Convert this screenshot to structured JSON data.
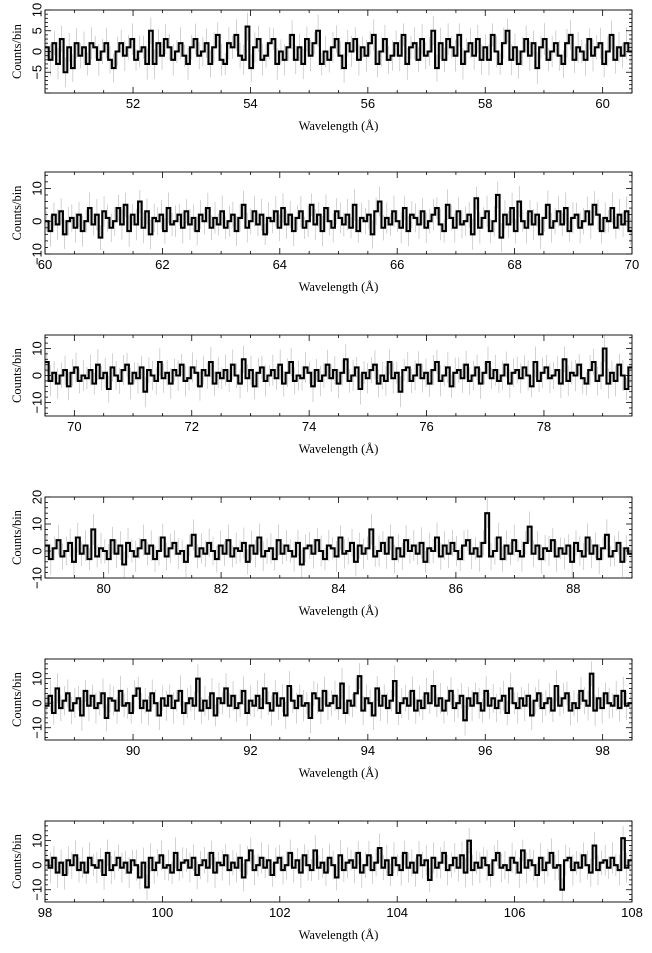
{
  "chart_data": [
    {
      "type": "line",
      "style": "step-histogram-with-error-bars",
      "xlabel": "Wavelength (Å)",
      "ylabel": "Counts/bin",
      "xlim": [
        50.5,
        60.5
      ],
      "ylim": [
        -10,
        10
      ],
      "xticks": [
        52,
        54,
        56,
        58,
        60
      ],
      "yticks": [
        -5,
        0,
        5,
        10
      ],
      "ytick_labels": [
        "−5",
        "0",
        "5",
        "10"
      ],
      "series": [
        {
          "values": [
            1,
            -2,
            2,
            -3,
            3,
            -5,
            1,
            -4,
            2,
            -1,
            1,
            -3,
            2,
            1,
            -2,
            0,
            2,
            -2,
            -4,
            0,
            2,
            -1,
            1,
            3,
            -2,
            0,
            1,
            -3,
            5,
            -3,
            2,
            -1,
            3,
            1,
            -2,
            0,
            2,
            -1,
            -3,
            1,
            3,
            -1,
            0,
            2,
            -3,
            1,
            4,
            -2,
            -3,
            2,
            1,
            4,
            -1,
            -2,
            6,
            -4,
            1,
            3,
            -2,
            -1,
            2,
            3,
            -3,
            0,
            -2,
            1,
            4,
            -2,
            1,
            -3,
            3,
            -1,
            2,
            5,
            -3,
            0,
            -2,
            1,
            3,
            -1,
            -4,
            2,
            0,
            3,
            -2,
            1,
            -1,
            2,
            4,
            -3,
            0,
            3,
            -2,
            -1,
            2,
            -1,
            4,
            -3,
            1,
            2,
            -2,
            3,
            -1,
            0,
            5,
            -4,
            2,
            -2,
            3,
            1,
            -1,
            4,
            -3,
            0,
            2,
            -1,
            3,
            -2,
            1,
            -2,
            4,
            0,
            -3,
            2,
            5,
            -2,
            1,
            -3,
            0,
            3,
            -1,
            2,
            -4,
            1,
            3,
            -2,
            0,
            2,
            -1,
            -3,
            2,
            4,
            -2,
            1,
            0,
            -2,
            3,
            -1,
            1,
            2,
            -3,
            0,
            4,
            -2,
            1,
            -1,
            2,
            0
          ]
        }
      ]
    },
    {
      "type": "line",
      "style": "step-histogram-with-error-bars",
      "xlabel": "Wavelength (Å)",
      "ylabel": "Counts/bin",
      "xlim": [
        60,
        70
      ],
      "ylim": [
        -10,
        15
      ],
      "xticks": [
        60,
        62,
        64,
        66,
        68,
        70
      ],
      "yticks": [
        -10,
        0,
        10
      ],
      "ytick_labels": [
        "−10",
        "0",
        "10"
      ],
      "series": [
        {
          "values": [
            0,
            -3,
            2,
            -1,
            3,
            -4,
            0,
            1,
            -2,
            2,
            -3,
            0,
            4,
            -1,
            2,
            -5,
            3,
            1,
            -2,
            0,
            4,
            -1,
            5,
            -3,
            2,
            -1,
            6,
            -2,
            3,
            -4,
            1,
            0,
            2,
            -3,
            4,
            -1,
            0,
            2,
            -2,
            3,
            -1,
            1,
            -3,
            2,
            0,
            4,
            -2,
            1,
            -1,
            3,
            -2,
            0,
            2,
            -3,
            1,
            5,
            -2,
            0,
            3,
            -1,
            2,
            -4,
            1,
            0,
            3,
            -2,
            4,
            -1,
            2,
            -3,
            1,
            3,
            -2,
            0,
            5,
            -1,
            2,
            -3,
            4,
            0,
            -2,
            3,
            1,
            -1,
            2,
            -2,
            5,
            -3,
            1,
            0,
            2,
            -4,
            3,
            6,
            -2,
            1,
            -1,
            3,
            0,
            -2,
            4,
            -3,
            2,
            1,
            -1,
            3,
            -2,
            0,
            2,
            4,
            -1,
            -3,
            5,
            1,
            -2,
            3,
            -1,
            0,
            2,
            -4,
            7,
            -2,
            1,
            3,
            -3,
            0,
            8,
            -5,
            2,
            -1,
            4,
            -3,
            6,
            0,
            -2,
            3,
            -1,
            2,
            -4,
            1,
            5,
            -2,
            0,
            3,
            -1,
            4,
            -3,
            1,
            2,
            -2,
            0,
            3,
            -1,
            5,
            2,
            -3,
            1,
            0,
            4,
            -2,
            2,
            -1,
            3,
            -3
          ]
        }
      ]
    },
    {
      "type": "line",
      "style": "step-histogram-with-error-bars",
      "xlabel": "Wavelength (Å)",
      "ylabel": "Counts/bin",
      "xlim": [
        69.5,
        79.5
      ],
      "ylim": [
        -15,
        15
      ],
      "xticks": [
        70,
        72,
        74,
        76,
        78
      ],
      "yticks": [
        -10,
        0,
        10
      ],
      "ytick_labels": [
        "−10",
        "0",
        "10"
      ],
      "series": [
        {
          "values": [
            5,
            -2,
            1,
            -3,
            0,
            2,
            -4,
            1,
            3,
            -2,
            0,
            -1,
            2,
            -3,
            4,
            -1,
            1,
            -5,
            3,
            0,
            -2,
            2,
            4,
            -3,
            1,
            -1,
            3,
            -6,
            2,
            0,
            -2,
            5,
            -1,
            1,
            -3,
            2,
            0,
            4,
            -2,
            -1,
            3,
            1,
            -4,
            2,
            0,
            5,
            -3,
            1,
            -1,
            2,
            -2,
            4,
            0,
            -3,
            6,
            -1,
            2,
            -4,
            1,
            3,
            -2,
            0,
            2,
            -1,
            4,
            -3,
            1,
            5,
            -2,
            0,
            -1,
            3,
            1,
            -4,
            2,
            -2,
            0,
            4,
            -1,
            2,
            -3,
            1,
            6,
            -2,
            0,
            3,
            -5,
            1,
            -1,
            2,
            4,
            -3,
            0,
            -2,
            5,
            -1,
            1,
            -6,
            2,
            3,
            -2,
            0,
            4,
            -1,
            1,
            -3,
            2,
            5,
            -2,
            0,
            3,
            -4,
            1,
            2,
            -1,
            4,
            -2,
            0,
            3,
            -3,
            1,
            5,
            -1,
            2,
            -2,
            0,
            4,
            -3,
            1,
            2,
            -1,
            3,
            0,
            -4,
            5,
            -2,
            1,
            3,
            -1,
            0,
            2,
            -3,
            6,
            -2,
            1,
            0,
            4,
            -1,
            -3,
            2,
            5,
            -2,
            0,
            10,
            -3,
            1,
            -2,
            4,
            0,
            -5,
            3
          ]
        }
      ]
    },
    {
      "type": "line",
      "style": "step-histogram-with-error-bars",
      "xlabel": "Wavelength (Å)",
      "ylabel": "Counts/bin",
      "xlim": [
        79,
        89
      ],
      "ylim": [
        -10,
        20
      ],
      "xticks": [
        80,
        82,
        84,
        86,
        88
      ],
      "yticks": [
        -10,
        0,
        10,
        20
      ],
      "ytick_labels": [
        "−10",
        "0",
        "10",
        "20"
      ],
      "series": [
        {
          "values": [
            2,
            -3,
            1,
            4,
            -2,
            0,
            3,
            -4,
            5,
            -1,
            2,
            -3,
            8,
            -2,
            1,
            0,
            -3,
            4,
            -1,
            2,
            -5,
            3,
            0,
            -2,
            1,
            4,
            -1,
            2,
            -3,
            0,
            5,
            -2,
            1,
            3,
            -1,
            0,
            -4,
            2,
            6,
            -2,
            1,
            -1,
            3,
            0,
            -3,
            2,
            -1,
            4,
            -2,
            1,
            0,
            3,
            -4,
            2,
            -1,
            5,
            -2,
            0,
            1,
            -3,
            4,
            -1,
            2,
            0,
            -2,
            3,
            -5,
            1,
            2,
            -1,
            4,
            0,
            -3,
            2,
            1,
            -2,
            5,
            -1,
            0,
            3,
            -4,
            2,
            -1,
            1,
            8,
            -2,
            0,
            3,
            -1,
            5,
            -3,
            1,
            -2,
            4,
            0,
            2,
            -1,
            3,
            -4,
            1,
            0,
            5,
            -2,
            2,
            -1,
            3,
            0,
            -3,
            2,
            4,
            -1,
            1,
            -2,
            3,
            14,
            -2,
            0,
            5,
            -3,
            2,
            -1,
            4,
            0,
            -2,
            3,
            9,
            -1,
            2,
            -3,
            1,
            0,
            4,
            -2,
            1,
            -1,
            2,
            -4,
            3,
            0,
            -2,
            5,
            -1,
            2,
            -3,
            1,
            6,
            -2,
            0,
            3,
            -4,
            1,
            -1
          ]
        }
      ]
    },
    {
      "type": "line",
      "style": "step-histogram-with-error-bars",
      "xlabel": "Wavelength (Å)",
      "ylabel": "Counts/bin",
      "xlim": [
        88.5,
        98.5
      ],
      "ylim": [
        -15,
        18
      ],
      "xticks": [
        90,
        92,
        94,
        96,
        98
      ],
      "yticks": [
        -10,
        0,
        10
      ],
      "ytick_labels": [
        "−10",
        "0",
        "10"
      ],
      "series": [
        {
          "values": [
            -1,
            3,
            -4,
            6,
            -2,
            1,
            4,
            -3,
            0,
            2,
            -5,
            5,
            -1,
            3,
            -2,
            0,
            4,
            -6,
            2,
            1,
            -3,
            5,
            -1,
            0,
            -4,
            3,
            6,
            -2,
            1,
            -3,
            4,
            0,
            -5,
            2,
            -1,
            3,
            -2,
            1,
            5,
            -4,
            0,
            2,
            -1,
            10,
            -3,
            1,
            -2,
            4,
            -5,
            2,
            0,
            6,
            -1,
            3,
            -2,
            0,
            5,
            -4,
            1,
            -1,
            3,
            -2,
            6,
            0,
            -3,
            4,
            -1,
            2,
            -5,
            7,
            1,
            -2,
            3,
            -1,
            0,
            -6,
            4,
            2,
            -3,
            5,
            -1,
            0,
            3,
            -2,
            8,
            -4,
            1,
            -1,
            4,
            11,
            -3,
            2,
            0,
            -5,
            6,
            -1,
            3,
            -2,
            1,
            9,
            -4,
            0,
            2,
            -1,
            5,
            -3,
            1,
            -2,
            4,
            0,
            7,
            -1,
            2,
            -3,
            1,
            5,
            -2,
            0,
            3,
            -7,
            2,
            -1,
            4,
            0,
            -3,
            5,
            -1,
            2,
            -2,
            1,
            3,
            -4,
            6,
            0,
            -2,
            2,
            -1,
            3,
            -5,
            1,
            4,
            -2,
            0,
            2,
            -3,
            7,
            -1,
            2,
            4,
            -3,
            0,
            -2,
            5,
            1,
            -1,
            12,
            -3,
            2,
            -2,
            4,
            0,
            -1,
            3,
            -2,
            5,
            -1,
            0
          ]
        }
      ]
    },
    {
      "type": "line",
      "style": "step-histogram-with-error-bars",
      "xlabel": "Wavelength (Å)",
      "ylabel": "Counts/bin",
      "xlim": [
        98,
        108
      ],
      "ylim": [
        -15,
        18
      ],
      "xticks": [
        98,
        100,
        102,
        104,
        106,
        108
      ],
      "yticks": [
        -10,
        0,
        10
      ],
      "ytick_labels": [
        "−10",
        "0",
        "10"
      ],
      "series": [
        {
          "values": [
            2,
            -1,
            3,
            -3,
            1,
            -4,
            2,
            0,
            4,
            -2,
            1,
            -3,
            3,
            0,
            -1,
            2,
            -4,
            5,
            -2,
            0,
            3,
            -1,
            1,
            -3,
            2,
            0,
            -5,
            1,
            -9,
            3,
            -2,
            1,
            4,
            -1,
            0,
            -3,
            5,
            -2,
            1,
            2,
            -1,
            3,
            -4,
            0,
            2,
            -1,
            5,
            -3,
            1,
            0,
            4,
            -2,
            1,
            -1,
            3,
            -5,
            2,
            6,
            -2,
            0,
            3,
            -1,
            2,
            -4,
            1,
            3,
            -2,
            0,
            5,
            -1,
            2,
            -3,
            4,
            0,
            -2,
            6,
            -1,
            1,
            -3,
            3,
            0,
            -5,
            4,
            -2,
            1,
            2,
            -1,
            5,
            -3,
            0,
            4,
            -2,
            1,
            7,
            -1,
            2,
            -4,
            3,
            0,
            -2,
            5,
            -1,
            1,
            -3,
            4,
            0,
            2,
            -6,
            3,
            -1,
            1,
            5,
            -2,
            0,
            3,
            -1,
            4,
            -3,
            10,
            -2,
            1,
            -1,
            3,
            0,
            -4,
            2,
            5,
            -1,
            0,
            -2,
            3,
            1,
            -3,
            6,
            -1,
            2,
            0,
            -4,
            3,
            -2,
            1,
            5,
            -1,
            0,
            -10,
            2,
            3,
            -2,
            1,
            -1,
            4,
            0,
            -3,
            8,
            -2,
            1,
            2,
            -1,
            3,
            0,
            -2,
            11,
            -1,
            2
          ]
        }
      ]
    }
  ]
}
